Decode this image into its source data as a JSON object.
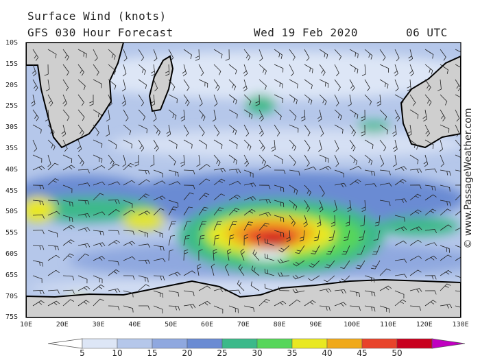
{
  "header": {
    "title": "Surface Wind (knots)",
    "model": "GFS 030 Hour Forecast",
    "date": "Wed 19 Feb 2020",
    "time": "06 UTC"
  },
  "credit": "© www.PassageWeather.com",
  "axes": {
    "lat_labels": [
      "10S",
      "15S",
      "20S",
      "25S",
      "30S",
      "35S",
      "40S",
      "45S",
      "50S",
      "55S",
      "60S",
      "65S",
      "70S",
      "75S"
    ],
    "lon_labels": [
      "10E",
      "20E",
      "30E",
      "40E",
      "50E",
      "60E",
      "70E",
      "80E",
      "90E",
      "100E",
      "110E",
      "120E",
      "130E"
    ]
  },
  "colorbar": {
    "labels": [
      "5",
      "10",
      "15",
      "20",
      "25",
      "30",
      "35",
      "40",
      "45",
      "50"
    ],
    "colors": [
      "#ffffff",
      "#dde6f6",
      "#b5c7ea",
      "#8fa8df",
      "#6a8bd3",
      "#3cb98a",
      "#56d65a",
      "#e9e821",
      "#f0a91a",
      "#e8432a",
      "#c8001e",
      "#c000c0"
    ]
  },
  "palette": {
    "land": "#cfcfcf",
    "ocean_calm": "#dde6f6",
    "coast": "#000000"
  }
}
